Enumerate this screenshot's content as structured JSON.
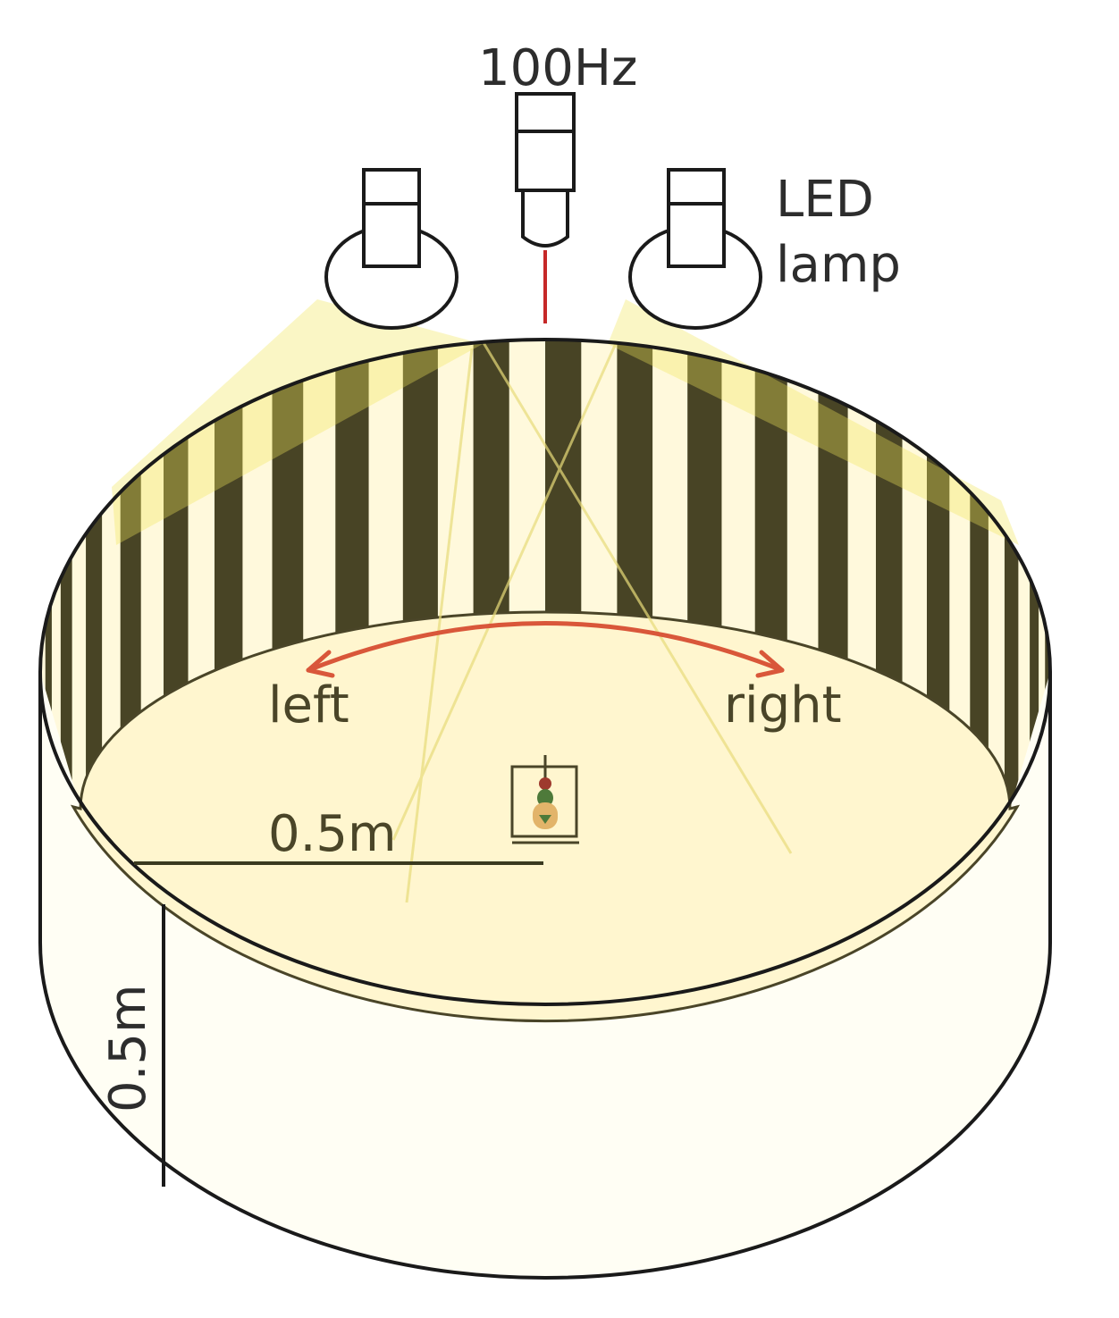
{
  "labels": {
    "camera_rate": "100Hz",
    "lamp_line1": "LED",
    "lamp_line2": "lamp",
    "direction_left": "left",
    "direction_right": "right",
    "radius": "0.5m",
    "height": "0.5m"
  },
  "colors": {
    "stripe_dark": "#484425",
    "stripe_light": "#fff9dc",
    "floor": "#fff6cf",
    "outline": "#1a1a1a",
    "arrow": "#d9573a",
    "laser": "#c62828",
    "light_cone": "#f2e65a",
    "fly_body": "#e2b46a",
    "fly_head": "#9e3a2e",
    "fly_thorax": "#4e7a3a"
  },
  "stripes": {
    "count": 22
  },
  "icons": {
    "camera": "camera-icon",
    "lamp_left": "lamp-icon",
    "lamp_right": "lamp-icon",
    "fly": "fly-icon",
    "rotation_arrow": "double-arrow-icon"
  }
}
